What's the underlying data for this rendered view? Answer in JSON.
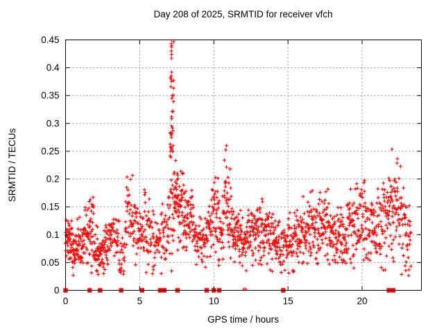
{
  "chart_data": {
    "type": "scatter",
    "title": "Day 208 of 2025, SRMTID for receiver vfch",
    "xlabel": "GPS time / hours",
    "ylabel": "SRMTID / TECUs",
    "xlim": [
      0,
      24
    ],
    "ylim": [
      0,
      0.45
    ],
    "xtick_values": [
      0,
      5,
      10,
      15,
      20
    ],
    "xtick_labels": [
      "0",
      "5",
      "10",
      "15",
      "20"
    ],
    "ytick_values": [
      0,
      0.05,
      0.1,
      0.15,
      0.2,
      0.25,
      0.3,
      0.35,
      0.4,
      0.45
    ],
    "ytick_labels": [
      "0",
      "0.05",
      "0.1",
      "0.15",
      "0.2",
      "0.25",
      "0.3",
      "0.35",
      "0.4",
      "0.45"
    ],
    "grid": true,
    "legend": "none",
    "marker_color": "#ff0000",
    "grid_color": "#8c8c8c",
    "border_color": "#000000",
    "series": [
      {
        "name": "SRMTID",
        "marker": "plus",
        "density_segments_columns": [
          "hour_start",
          "hour_end",
          "n_points",
          "value_center",
          "value_spread",
          "value_max"
        ],
        "density_segments": [
          [
            0.0,
            0.3,
            32,
            0.095,
            0.018,
            0.13
          ],
          [
            0.3,
            0.8,
            45,
            0.085,
            0.018,
            0.125
          ],
          [
            0.8,
            1.3,
            40,
            0.082,
            0.02,
            0.14
          ],
          [
            1.3,
            1.6,
            22,
            0.1,
            0.028,
            0.17
          ],
          [
            1.6,
            1.9,
            28,
            0.125,
            0.038,
            0.21
          ],
          [
            1.9,
            2.2,
            26,
            0.075,
            0.02,
            0.12
          ],
          [
            2.2,
            2.6,
            32,
            0.062,
            0.015,
            0.1
          ],
          [
            2.6,
            3.1,
            38,
            0.08,
            0.02,
            0.13
          ],
          [
            3.1,
            3.6,
            30,
            0.098,
            0.02,
            0.135
          ],
          [
            3.6,
            4.0,
            20,
            0.07,
            0.02,
            0.11
          ],
          [
            4.0,
            4.6,
            40,
            0.125,
            0.035,
            0.21
          ],
          [
            4.6,
            5.2,
            40,
            0.115,
            0.03,
            0.19
          ],
          [
            5.2,
            5.7,
            34,
            0.11,
            0.034,
            0.21
          ],
          [
            5.7,
            6.4,
            40,
            0.09,
            0.022,
            0.16
          ],
          [
            6.4,
            6.9,
            30,
            0.1,
            0.028,
            0.17
          ],
          [
            6.9,
            7.05,
            10,
            0.13,
            0.04,
            0.22
          ],
          [
            7.05,
            7.3,
            46,
            0.25,
            0.1,
            0.45
          ],
          [
            7.3,
            7.6,
            34,
            0.17,
            0.04,
            0.28
          ],
          [
            7.6,
            8.1,
            46,
            0.15,
            0.035,
            0.23
          ],
          [
            8.1,
            8.6,
            40,
            0.125,
            0.028,
            0.18
          ],
          [
            8.6,
            9.2,
            40,
            0.095,
            0.022,
            0.15
          ],
          [
            9.2,
            9.6,
            26,
            0.09,
            0.022,
            0.14
          ],
          [
            9.6,
            9.85,
            18,
            0.11,
            0.03,
            0.17
          ],
          [
            9.85,
            10.3,
            36,
            0.14,
            0.04,
            0.24
          ],
          [
            10.3,
            10.65,
            26,
            0.11,
            0.03,
            0.18
          ],
          [
            10.65,
            11.2,
            46,
            0.15,
            0.045,
            0.26
          ],
          [
            11.2,
            11.7,
            40,
            0.105,
            0.025,
            0.16
          ],
          [
            11.7,
            12.2,
            40,
            0.095,
            0.022,
            0.15
          ],
          [
            12.2,
            12.7,
            38,
            0.1,
            0.024,
            0.16
          ],
          [
            12.7,
            13.0,
            24,
            0.105,
            0.028,
            0.17
          ],
          [
            13.0,
            13.3,
            24,
            0.12,
            0.038,
            0.22
          ],
          [
            13.3,
            13.9,
            45,
            0.095,
            0.024,
            0.16
          ],
          [
            13.9,
            14.4,
            38,
            0.088,
            0.02,
            0.14
          ],
          [
            14.4,
            14.9,
            30,
            0.08,
            0.022,
            0.13
          ],
          [
            14.9,
            15.4,
            34,
            0.09,
            0.025,
            0.15
          ],
          [
            15.4,
            16.0,
            44,
            0.1,
            0.026,
            0.17
          ],
          [
            16.0,
            16.6,
            45,
            0.105,
            0.028,
            0.19
          ],
          [
            16.6,
            17.2,
            45,
            0.11,
            0.03,
            0.2
          ],
          [
            17.2,
            17.8,
            45,
            0.11,
            0.032,
            0.22
          ],
          [
            17.8,
            18.4,
            44,
            0.1,
            0.026,
            0.17
          ],
          [
            18.4,
            19.0,
            44,
            0.1,
            0.027,
            0.18
          ],
          [
            19.0,
            19.6,
            44,
            0.115,
            0.033,
            0.22
          ],
          [
            19.6,
            20.2,
            42,
            0.13,
            0.038,
            0.23
          ],
          [
            20.2,
            20.8,
            40,
            0.125,
            0.034,
            0.22
          ],
          [
            20.8,
            21.4,
            40,
            0.12,
            0.032,
            0.21
          ],
          [
            21.4,
            21.9,
            38,
            0.14,
            0.04,
            0.245
          ],
          [
            21.9,
            22.4,
            42,
            0.155,
            0.048,
            0.255
          ],
          [
            22.4,
            22.9,
            32,
            0.13,
            0.045,
            0.23
          ],
          [
            22.9,
            23.3,
            26,
            0.09,
            0.038,
            0.16
          ]
        ],
        "extra_points": [
          [
            7.13,
            0.45
          ],
          [
            7.14,
            0.443
          ],
          [
            7.15,
            0.437
          ],
          [
            7.13,
            0.43
          ],
          [
            7.16,
            0.424
          ],
          [
            7.14,
            0.417
          ],
          [
            7.15,
            0.392
          ],
          [
            7.13,
            0.385
          ],
          [
            7.17,
            0.345
          ],
          [
            7.15,
            0.312
          ],
          [
            7.16,
            0.295
          ],
          [
            7.14,
            0.275
          ],
          [
            10.86,
            0.26
          ],
          [
            3.7,
            0.032
          ],
          [
            15.05,
            0.031
          ],
          [
            0.52,
            0.027
          ],
          [
            22.9,
            0.044
          ],
          [
            12.03,
            0.002
          ],
          [
            12.15,
            0.002
          ]
        ]
      },
      {
        "name": "zero-line markers",
        "marker": "filled-square",
        "y": 0,
        "x": [
          0.0,
          1.63,
          2.33,
          3.75,
          5.16,
          6.38,
          6.66,
          7.55,
          9.52,
          10.0,
          10.36,
          14.68,
          21.8,
          22.1
        ]
      }
    ]
  }
}
